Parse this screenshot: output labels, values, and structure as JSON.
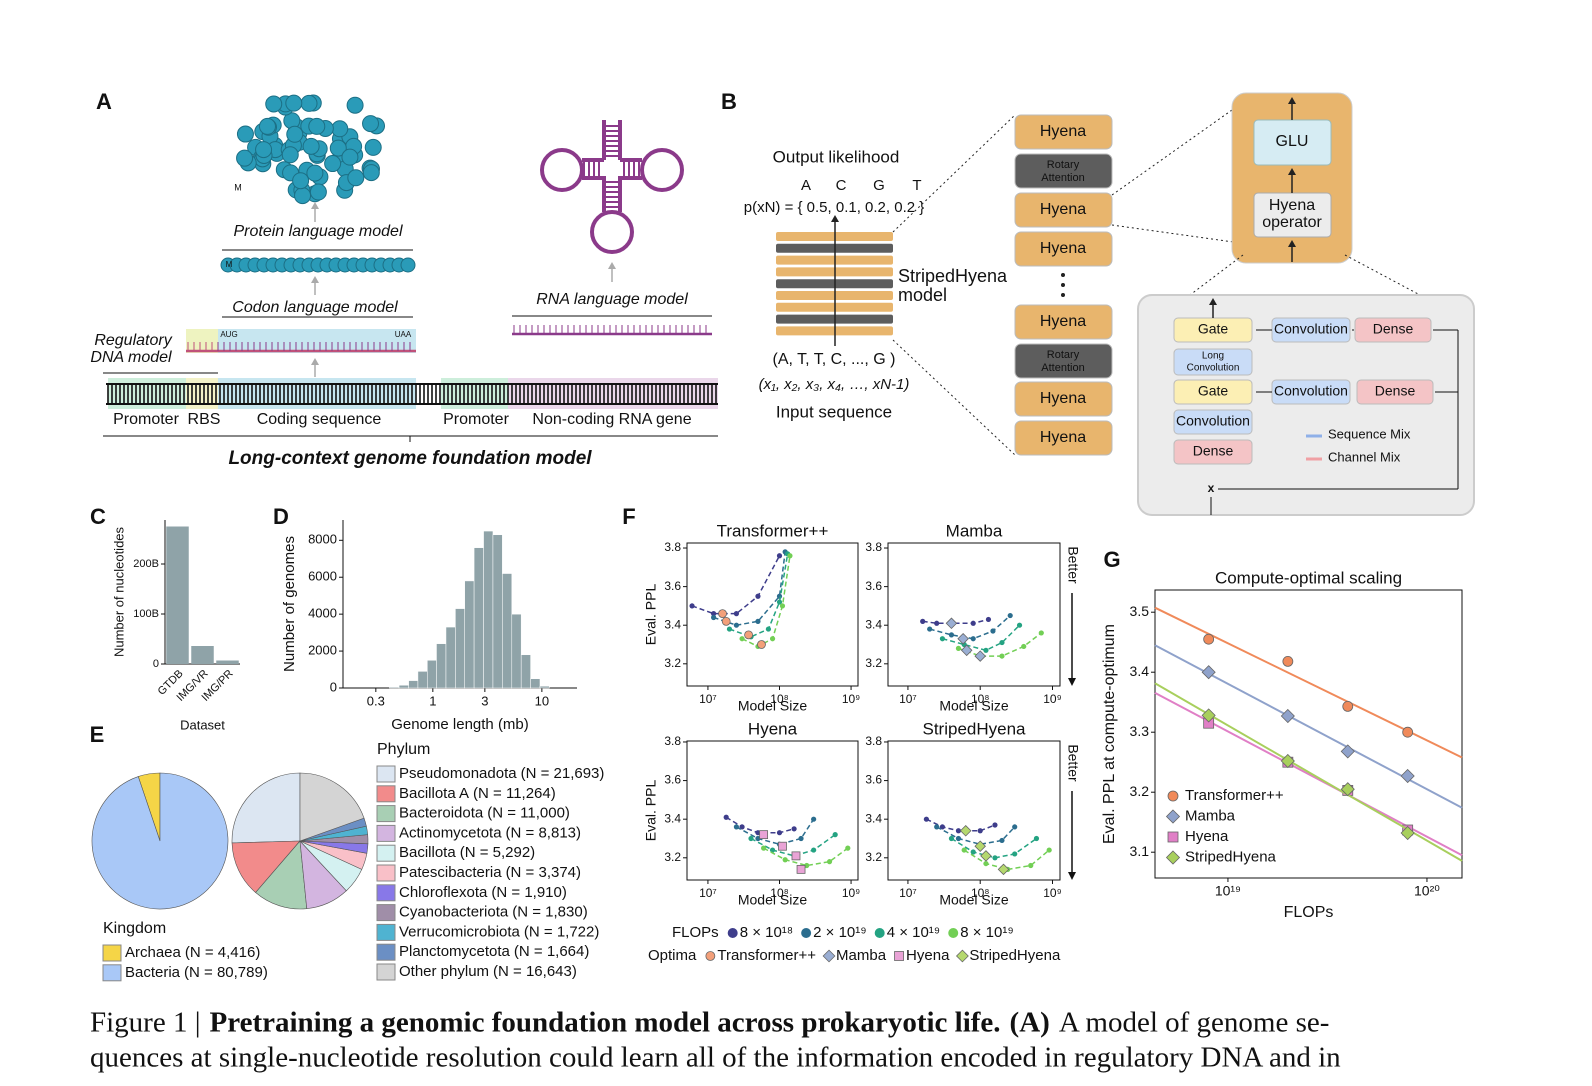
{
  "panel_labels": {
    "a": "A",
    "b": "B",
    "c": "C",
    "d": "D",
    "e": "E",
    "f": "F",
    "g": "G"
  },
  "diagram_a": {
    "protein_model": "Protein language model",
    "codon_model": "Codon language model",
    "regulatory_model": [
      "Regulatory",
      "DNA model"
    ],
    "start_codon": "AUG",
    "stop_codon": "UAA",
    "methionine": [
      "M",
      "M"
    ],
    "rna_model": "RNA language model",
    "regions": [
      "Promoter",
      "RBS",
      "Coding sequence",
      "Promoter",
      "Non-coding RNA gene"
    ],
    "foundation_model": "Long-context genome foundation model"
  },
  "diagram_b": {
    "output_title": "Output likelihood",
    "tokens": [
      "A",
      "C",
      "G",
      "T"
    ],
    "likelihood": "p(xN) = { 0.5,  0.1,  0.2,  0.2 }",
    "model_name": [
      "StripedHyena",
      "model"
    ],
    "input_tokens": "(A, T, T, C, ..., G )",
    "input_symbols": "(x₁, x₂, x₃, x₄, …, xN-1)",
    "input_title": "Input sequence",
    "blocks": [
      [
        "Hyena"
      ],
      [
        "Rotary",
        "Attention"
      ],
      [
        "Hyena"
      ],
      [
        "Hyena"
      ],
      [
        "Hyena"
      ],
      [
        "Rotary",
        "Attention"
      ],
      [
        "Hyena"
      ],
      [
        "Hyena"
      ]
    ],
    "operator": {
      "glu": "GLU",
      "hyena_operator": [
        "Hyena",
        "operator"
      ]
    },
    "operator_detail": {
      "gate_1": "Gate",
      "conv_1": "Convolution",
      "dense_1": "Dense",
      "long_conv": [
        "Long",
        "Convolution"
      ],
      "gate_2": "Gate",
      "conv_2": "Convolution",
      "dense_2": "Dense",
      "conv_3": "Convolution",
      "dense_3": "Dense",
      "sequence_mix": "Sequence Mix",
      "channel_mix": "Channel Mix",
      "multiply": "x"
    }
  },
  "chart_data": [
    {
      "type": "bar",
      "ylabel": "Number of nucleotides",
      "xlabel": "Dataset",
      "frame": "axes",
      "categories": [
        "GTDB",
        "IMG/VR",
        "IMG/PR"
      ],
      "values": [
        275000000000,
        36000000000,
        7000000000
      ],
      "color": "#8fa3a8",
      "ylim": [
        0,
        288000000000
      ],
      "yticks": [
        0,
        {
          "value": 100000000000,
          "label": "100B"
        },
        {
          "value": 200000000000,
          "label": "200B"
        }
      ]
    },
    {
      "type": "histogram",
      "xlabel": "Genome length (mb)",
      "ylabel": "Number of genomes",
      "frame": "axes",
      "log_x": true,
      "bins": [
        0.4,
        0.49,
        0.6,
        0.73,
        0.89,
        1.08,
        1.32,
        1.61,
        1.96,
        2.39,
        2.92,
        3.56,
        4.34,
        5.3,
        6.46,
        7.88,
        9.61,
        11.7
      ],
      "values": [
        50,
        150,
        400,
        900,
        1500,
        2400,
        3300,
        4300,
        5800,
        7600,
        8500,
        8300,
        6200,
        4000,
        1800,
        500,
        100
      ],
      "color": "#8fa3a8",
      "xlim": [
        0.15,
        21
      ],
      "xticks": [
        0.3,
        1,
        3,
        10
      ],
      "ylim": [
        0,
        9100
      ],
      "yticks": [
        0,
        2000,
        4000,
        6000,
        8000
      ]
    },
    {
      "type": "pie",
      "legend_title": "Kingdom",
      "direction": "counterclockwise",
      "categories": [
        "Archaea",
        "Bacteria"
      ],
      "values": [
        4416,
        80789
      ],
      "value_labels": [
        "(N = 4,416)",
        "(N = 80,789)"
      ],
      "colors": [
        "#f5d547",
        "#a9c8f7"
      ]
    },
    {
      "type": "pie",
      "legend_title": "Phylum",
      "direction": "counterclockwise",
      "categories": [
        "Pseudomonadota",
        "Bacillota A",
        "Bacteroidota",
        "Actinomycetota",
        "Bacillota",
        "Patescibacteria",
        "Chloroflexota",
        "Cyanobacteriota",
        "Verrucomicrobiota",
        "Planctomycetota",
        "Other phylum"
      ],
      "values": [
        21693,
        11264,
        11000,
        8813,
        5292,
        3374,
        1910,
        1830,
        1722,
        1664,
        16643
      ],
      "value_labels": [
        "(N = 21,693)",
        "(N = 11,264)",
        "(N = 11,000)",
        "(N = 8,813)",
        "(N = 5,292)",
        "(N = 3,374)",
        "(N = 1,910)",
        "(N = 1,830)",
        "(N = 1,722)",
        "(N = 1,664)",
        "(N = 16,643)"
      ],
      "colors": [
        "#dce6f2",
        "#f28b8b",
        "#a8cfb4",
        "#d3b5e0",
        "#d4f1f1",
        "#f9c0c8",
        "#8878e8",
        "#a08ea8",
        "#4fb3d1",
        "#6b8fc4",
        "#d4d4d4"
      ]
    },
    {
      "type": "scatter",
      "title": "Transformer++",
      "xlabel": "Model Size",
      "ylabel": "Eval. PPL",
      "frame": "box",
      "log_x": true,
      "xlim": [
        5100000,
        1250000000
      ],
      "xticks": [
        {
          "value": 10000000,
          "label": "10⁷"
        },
        {
          "value": 100000000,
          "label": "10⁸"
        },
        {
          "value": 1000000000,
          "label": "10⁹"
        }
      ],
      "ylim": [
        3.085,
        3.826
      ],
      "yticks": [
        3.2,
        3.4,
        3.6,
        3.8
      ],
      "series": [
        {
          "color": "#3e3d8b",
          "x": [
            6000000,
            12000000,
            25000000,
            50000000,
            100000000
          ],
          "values": [
            3.5,
            3.46,
            3.46,
            3.55,
            3.76
          ]
        },
        {
          "color": "#2b6d8e",
          "x": [
            12000000,
            25000000,
            50000000,
            100000000,
            120000000
          ],
          "values": [
            3.44,
            3.4,
            3.42,
            3.55,
            3.78
          ]
        },
        {
          "color": "#24a382",
          "x": [
            20000000,
            40000000,
            70000000,
            100000000,
            130000000
          ],
          "values": [
            3.38,
            3.34,
            3.38,
            3.52,
            3.77
          ]
        },
        {
          "color": "#72cf55",
          "x": [
            30000000,
            50000000,
            80000000,
            110000000,
            140000000
          ],
          "values": [
            3.33,
            3.29,
            3.33,
            3.5,
            3.76
          ]
        }
      ],
      "optima": {
        "color": "#f3a07a",
        "marker": "circle",
        "x": [
          16000000,
          18000000,
          37000000,
          56000000
        ],
        "values": [
          3.46,
          3.42,
          3.35,
          3.3
        ]
      }
    },
    {
      "type": "scatter",
      "title": "Mamba",
      "xlabel": "Model Size",
      "annotation": "Better",
      "frame": "box",
      "log_x": true,
      "xlim": [
        5300000,
        1270000000
      ],
      "xticks": [
        {
          "value": 10000000,
          "label": "10⁷"
        },
        {
          "value": 100000000,
          "label": "10⁸"
        },
        {
          "value": 1000000000,
          "label": "10⁹"
        }
      ],
      "ylim": [
        3.085,
        3.826
      ],
      "yticks": [
        3.2,
        3.4,
        3.6,
        3.8
      ],
      "series": [
        {
          "color": "#3e3d8b",
          "x": [
            16000000,
            25000000,
            40000000,
            80000000,
            130000000
          ],
          "values": [
            3.42,
            3.41,
            3.41,
            3.41,
            3.43
          ]
        },
        {
          "color": "#2b6d8e",
          "x": [
            20000000,
            40000000,
            80000000,
            150000000,
            260000000
          ],
          "values": [
            3.38,
            3.35,
            3.33,
            3.37,
            3.45
          ]
        },
        {
          "color": "#24a382",
          "x": [
            30000000,
            60000000,
            120000000,
            200000000,
            350000000
          ],
          "values": [
            3.33,
            3.3,
            3.27,
            3.31,
            3.4
          ]
        },
        {
          "color": "#72cf55",
          "x": [
            50000000,
            100000000,
            200000000,
            400000000,
            700000000
          ],
          "values": [
            3.28,
            3.24,
            3.24,
            3.29,
            3.36
          ]
        }
      ],
      "optima": {
        "color": "#9aaed3",
        "marker": "diamond",
        "x": [
          40000000,
          58000000,
          65000000,
          100000000
        ],
        "values": [
          3.41,
          3.33,
          3.27,
          3.24
        ]
      }
    },
    {
      "type": "scatter",
      "title": "Hyena",
      "xlabel": "Model Size",
      "ylabel": "Eval. PPL",
      "frame": "box",
      "log_x": true,
      "xlim": [
        5100000,
        1250000000
      ],
      "xticks": [
        {
          "value": 10000000,
          "label": "10⁷"
        },
        {
          "value": 100000000,
          "label": "10⁸"
        },
        {
          "value": 1000000000,
          "label": "10⁹"
        }
      ],
      "ylim": [
        3.085,
        3.805
      ],
      "yticks": [
        3.2,
        3.4,
        3.6,
        3.8
      ],
      "series": [
        {
          "color": "#3e3d8b",
          "x": [
            18000000,
            30000000,
            50000000,
            100000000,
            160000000
          ],
          "values": [
            3.41,
            3.36,
            3.33,
            3.33,
            3.35
          ]
        },
        {
          "color": "#2b6d8e",
          "x": [
            25000000,
            50000000,
            100000000,
            200000000,
            300000000
          ],
          "values": [
            3.36,
            3.3,
            3.27,
            3.3,
            3.4
          ]
        },
        {
          "color": "#24a382",
          "x": [
            40000000,
            80000000,
            160000000,
            300000000,
            600000000
          ],
          "values": [
            3.3,
            3.24,
            3.21,
            3.24,
            3.32
          ]
        },
        {
          "color": "#72cf55",
          "x": [
            60000000,
            120000000,
            240000000,
            500000000,
            900000000
          ],
          "values": [
            3.25,
            3.19,
            3.16,
            3.18,
            3.25
          ]
        }
      ],
      "optima": {
        "color": "#e9a3d6",
        "marker": "square",
        "x": [
          60000000,
          110000000,
          170000000,
          200000000
        ],
        "values": [
          3.32,
          3.26,
          3.21,
          3.14
        ]
      }
    },
    {
      "type": "scatter",
      "title": "StripedHyena",
      "xlabel": "Model Size",
      "annotation": "Better",
      "frame": "box",
      "log_x": true,
      "xlim": [
        5300000,
        1270000000
      ],
      "xticks": [
        {
          "value": 10000000,
          "label": "10⁷"
        },
        {
          "value": 100000000,
          "label": "10⁸"
        },
        {
          "value": 1000000000,
          "label": "10⁹"
        }
      ],
      "ylim": [
        3.085,
        3.805
      ],
      "yticks": [
        3.2,
        3.4,
        3.6,
        3.8
      ],
      "series": [
        {
          "color": "#3e3d8b",
          "x": [
            18000000,
            30000000,
            50000000,
            100000000,
            160000000
          ],
          "values": [
            3.4,
            3.36,
            3.34,
            3.34,
            3.37
          ]
        },
        {
          "color": "#2b6d8e",
          "x": [
            25000000,
            50000000,
            100000000,
            200000000,
            300000000
          ],
          "values": [
            3.36,
            3.3,
            3.27,
            3.29,
            3.36
          ]
        },
        {
          "color": "#24a382",
          "x": [
            40000000,
            80000000,
            160000000,
            300000000,
            600000000
          ],
          "values": [
            3.3,
            3.23,
            3.2,
            3.22,
            3.3
          ]
        },
        {
          "color": "#72cf55",
          "x": [
            60000000,
            120000000,
            240000000,
            500000000,
            900000000
          ],
          "values": [
            3.24,
            3.17,
            3.14,
            3.16,
            3.24
          ]
        }
      ],
      "optima": {
        "color": "#b5d86e",
        "marker": "diamond",
        "x": [
          63000000,
          100000000,
          120000000,
          210000000
        ],
        "values": [
          3.34,
          3.26,
          3.21,
          3.14
        ]
      }
    },
    {
      "type": "scatter",
      "title": "Compute-optimal scaling",
      "xlabel": "FLOPs",
      "ylabel": "Eval. PPL at compute-optimum",
      "frame": "box",
      "log_x": true,
      "fit": true,
      "legend": "lower left",
      "xlim": [
        4300000000000000000,
        150000000000000000000
      ],
      "xticks": [
        {
          "value": 10000000000000000000,
          "label": "10¹⁹"
        },
        {
          "value": 100000000000000000000,
          "label": "10²⁰"
        }
      ],
      "ylim": [
        3.057,
        3.537
      ],
      "yticks": [
        3.1,
        3.2,
        3.3,
        3.4,
        3.5
      ],
      "x": [
        8000000000000000000,
        20000000000000000000,
        40000000000000000000,
        80000000000000000000
      ],
      "series": [
        {
          "name": "Transformer++",
          "color": "#f08a5a",
          "marker": "circle",
          "values": [
            3.455,
            3.418,
            3.343,
            3.3
          ]
        },
        {
          "name": "Mamba",
          "color": "#8fa2cb",
          "marker": "diamond",
          "values": [
            3.4,
            3.327,
            3.268,
            3.227
          ]
        },
        {
          "name": "Hyena",
          "color": "#e07fc6",
          "marker": "square",
          "values": [
            3.315,
            3.25,
            3.203,
            3.137
          ]
        },
        {
          "name": "StripedHyena",
          "color": "#a8cf5d",
          "marker": "diamond",
          "values": [
            3.328,
            3.252,
            3.205,
            3.132
          ]
        }
      ]
    }
  ],
  "figure_f_legend": {
    "flops_title": "FLOPs",
    "flops": [
      {
        "name": "8 × 10¹⁸",
        "color": "#3e3d8b"
      },
      {
        "name": "2 × 10¹⁹",
        "color": "#2b6d8e"
      },
      {
        "name": "4 × 10¹⁹",
        "color": "#24a382"
      },
      {
        "name": "8 × 10¹⁹",
        "color": "#72cf55"
      }
    ],
    "optima_title": "Optima",
    "optima": [
      {
        "name": "Transformer++",
        "color": "#f3a07a",
        "marker": "circle"
      },
      {
        "name": "Mamba",
        "color": "#9aaed3",
        "marker": "diamond"
      },
      {
        "name": "Hyena",
        "color": "#e9a3d6",
        "marker": "square"
      },
      {
        "name": "StripedHyena",
        "color": "#b5d86e",
        "marker": "diamond"
      }
    ]
  },
  "caption": {
    "prefix": "Figure 1 |",
    "title": "Pretraining a genomic foundation model across prokaryotic life.",
    "panel": "(A)",
    "text": "A model of genome se-",
    "line2": "quences at single-nucleotide resolution could learn all of the information encoded in regulatory DNA and in"
  }
}
